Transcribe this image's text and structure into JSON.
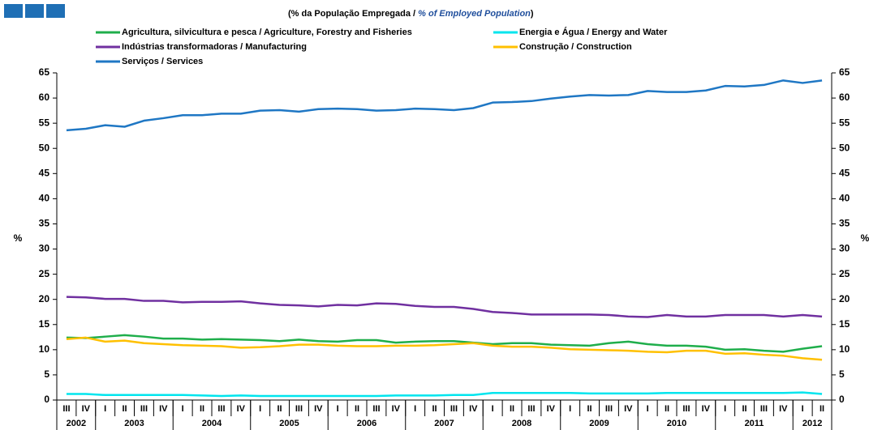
{
  "chart_data": {
    "type": "line",
    "subtitle": [
      "(% da População Empregada / ",
      "% of Employed Population",
      ")"
    ],
    "ylabel": "%",
    "categories": [
      "III",
      "IV",
      "I",
      "II",
      "III",
      "IV",
      "I",
      "II",
      "III",
      "IV",
      "I",
      "II",
      "III",
      "IV",
      "I",
      "II",
      "III",
      "IV",
      "I",
      "II",
      "III",
      "IV",
      "I",
      "II",
      "III",
      "IV",
      "I",
      "II",
      "III",
      "IV",
      "I",
      "II",
      "III",
      "IV",
      "I",
      "II",
      "III",
      "IV",
      "I",
      "II"
    ],
    "years": [
      "2002",
      "2003",
      "2004",
      "2005",
      "2006",
      "2007",
      "2008",
      "2009",
      "2010",
      "2011",
      "2012"
    ],
    "ylim": [
      0,
      65
    ],
    "yticks": [
      0,
      5,
      10,
      15,
      20,
      25,
      30,
      35,
      40,
      45,
      50,
      55,
      60,
      65
    ],
    "series": [
      {
        "name": "Agricultura, silvicultura e pesca / Agriculture, Forestry and Fisheries",
        "color": "#1fae4b",
        "values": [
          12.4,
          12.3,
          12.6,
          12.9,
          12.6,
          12.2,
          12.2,
          12.0,
          12.1,
          12.0,
          11.9,
          11.7,
          12.0,
          11.7,
          11.6,
          11.9,
          11.9,
          11.4,
          11.6,
          11.7,
          11.7,
          11.4,
          11.1,
          11.3,
          11.3,
          11.0,
          10.9,
          10.8,
          11.3,
          11.6,
          11.1,
          10.8,
          10.8,
          10.6,
          10.0,
          10.1,
          9.8,
          9.6,
          10.2,
          10.7
        ]
      },
      {
        "name": "Energia e Água / Energy and Water",
        "color": "#00e5ee",
        "values": [
          1.2,
          1.2,
          1.0,
          1.0,
          1.0,
          1.0,
          1.0,
          0.9,
          0.8,
          0.9,
          0.8,
          0.8,
          0.8,
          0.8,
          0.8,
          0.8,
          0.8,
          0.9,
          0.9,
          0.9,
          1.0,
          1.0,
          1.4,
          1.4,
          1.4,
          1.4,
          1.4,
          1.3,
          1.3,
          1.3,
          1.3,
          1.4,
          1.4,
          1.4,
          1.4,
          1.4,
          1.4,
          1.4,
          1.5,
          1.2
        ]
      },
      {
        "name": "Indústrias transformadoras / Manufacturing",
        "color": "#7030a0",
        "values": [
          20.5,
          20.4,
          20.1,
          20.1,
          19.7,
          19.7,
          19.4,
          19.5,
          19.5,
          19.6,
          19.2,
          18.9,
          18.8,
          18.6,
          18.9,
          18.8,
          19.2,
          19.1,
          18.7,
          18.5,
          18.5,
          18.1,
          17.5,
          17.3,
          17.0,
          17.0,
          17.0,
          17.0,
          16.9,
          16.6,
          16.5,
          16.9,
          16.6,
          16.6,
          16.9,
          16.9,
          16.9,
          16.6,
          16.9,
          16.6
        ]
      },
      {
        "name": "Construção / Construction",
        "color": "#ffc000",
        "values": [
          12.1,
          12.4,
          11.6,
          11.8,
          11.3,
          11.1,
          10.9,
          10.8,
          10.7,
          10.4,
          10.5,
          10.7,
          11.0,
          11.0,
          10.8,
          10.7,
          10.7,
          10.8,
          10.8,
          10.9,
          11.1,
          11.3,
          10.8,
          10.6,
          10.6,
          10.4,
          10.1,
          10.0,
          9.9,
          9.8,
          9.6,
          9.5,
          9.8,
          9.8,
          9.2,
          9.3,
          9.0,
          8.8,
          8.3,
          8.0
        ]
      },
      {
        "name": "Serviços / Services",
        "color": "#1f77c4",
        "values": [
          53.6,
          53.9,
          54.6,
          54.3,
          55.5,
          56.0,
          56.6,
          56.6,
          56.9,
          56.9,
          57.5,
          57.6,
          57.3,
          57.8,
          57.9,
          57.8,
          57.5,
          57.6,
          57.9,
          57.8,
          57.6,
          58.0,
          59.1,
          59.2,
          59.4,
          59.9,
          60.3,
          60.6,
          60.5,
          60.6,
          61.4,
          61.2,
          61.2,
          61.5,
          62.4,
          62.3,
          62.6,
          63.5,
          63.0,
          63.5
        ]
      }
    ]
  }
}
